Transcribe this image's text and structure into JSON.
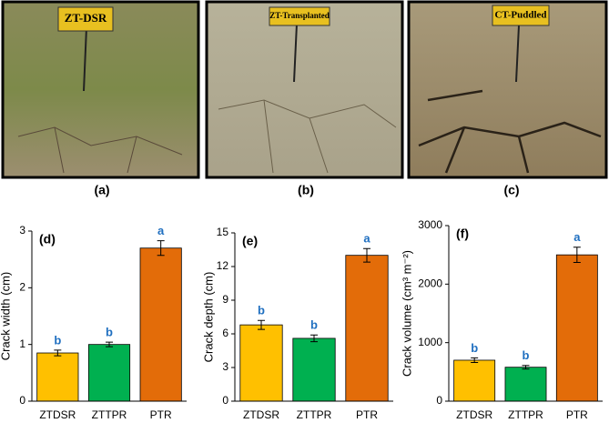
{
  "photos": [
    {
      "sign": "ZT-DSR",
      "caption": "(a)"
    },
    {
      "sign": "ZT-Transplanted",
      "caption": "(b)"
    },
    {
      "sign": "CT-Puddled",
      "caption": "(c)"
    }
  ],
  "chart_data": [
    {
      "type": "bar",
      "panel": "(d)",
      "y_label": "Crack width (cm)",
      "categories": [
        "ZTDSR",
        "ZTTPR",
        "PTR"
      ],
      "series": [
        {
          "values": [
            0.85,
            1.0,
            2.7
          ],
          "errors": [
            0.05,
            0.04,
            0.13
          ],
          "colors": [
            "#ffc000",
            "#00b050",
            "#e36c09"
          ]
        }
      ],
      "annotations": [
        "b",
        "b",
        "a"
      ],
      "ylim": [
        0,
        3
      ],
      "yticks": [
        0,
        1,
        2,
        3
      ]
    },
    {
      "type": "bar",
      "panel": "(e)",
      "y_label": "Crack depth (cm)",
      "categories": [
        "ZTDSR",
        "ZTTPR",
        "PTR"
      ],
      "series": [
        {
          "values": [
            6.8,
            5.6,
            13.0
          ],
          "errors": [
            0.4,
            0.3,
            0.6
          ],
          "colors": [
            "#ffc000",
            "#00b050",
            "#e36c09"
          ]
        }
      ],
      "annotations": [
        "b",
        "b",
        "a"
      ],
      "ylim": [
        0,
        15
      ],
      "yticks": [
        0,
        3,
        6,
        9,
        12,
        15
      ]
    },
    {
      "type": "bar",
      "panel": "(f)",
      "y_label": "Crack volume (cm³ m⁻²)",
      "categories": [
        "ZTDSR",
        "ZTTPR",
        "PTR"
      ],
      "series": [
        {
          "values": [
            700,
            580,
            2500
          ],
          "errors": [
            40,
            30,
            130
          ],
          "colors": [
            "#ffc000",
            "#00b050",
            "#e36c09"
          ]
        }
      ],
      "annotations": [
        "b",
        "b",
        "a"
      ],
      "ylim": [
        0,
        3000
      ],
      "yticks": [
        0,
        1000,
        2000,
        3000
      ]
    }
  ]
}
